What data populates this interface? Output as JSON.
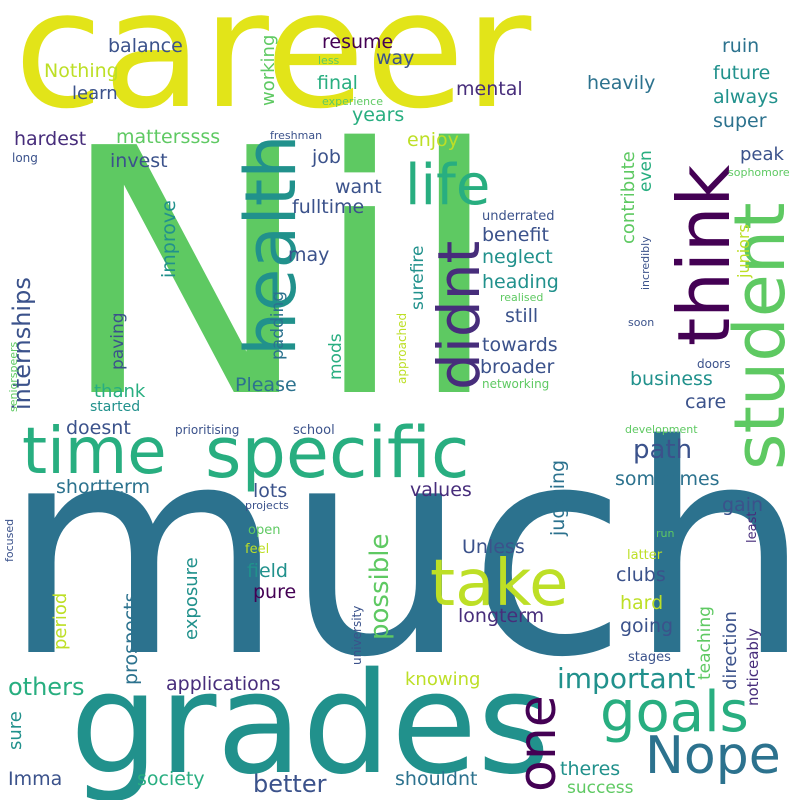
{
  "palette": {
    "yellow": "#e2e419",
    "green": "#5ec962",
    "lightgreen": "#7ad151",
    "teal": "#21918c",
    "blue": "#2c728e",
    "navy": "#3b528b",
    "purple": "#440154",
    "indigo": "#472d7b",
    "sea": "#28ae80",
    "lime": "#bddf26"
  },
  "words": [
    "career",
    "Nil",
    "much",
    "grades",
    "time",
    "specific",
    "health",
    "think",
    "student",
    "didnt",
    "life",
    "take",
    "goals",
    "Nope",
    "one",
    "important",
    "path",
    "possible",
    "internships",
    "resume",
    "balance",
    "Nothing",
    "learn",
    "working",
    "final",
    "way",
    "ruin",
    "future",
    "mental",
    "heavily",
    "always",
    "years",
    "super",
    "hardest",
    "matterssss",
    "enjoy",
    "invest",
    "job",
    "peak",
    "want",
    "fulltime",
    "contribute",
    "even",
    "improve",
    "benefit",
    "neglect",
    "heading",
    "may",
    "surefire",
    "juniors",
    "still",
    "towards",
    "broader",
    "padding",
    "paving",
    "mods",
    "Please",
    "thank",
    "business",
    "care",
    "doesnt",
    "started",
    "values",
    "shortterm",
    "lots",
    "sometimes",
    "gain",
    "Unless",
    "juggling",
    "field",
    "pure",
    "clubs",
    "exposure",
    "prospects",
    "period",
    "longterm",
    "going",
    "hard",
    "direction",
    "teaching",
    "others",
    "applications",
    "knowing",
    "sure",
    "better",
    "society",
    "shouldnt",
    "theres",
    "success",
    "Imma",
    "noticeably",
    "less",
    "experience",
    "freshman",
    "long",
    "sophomore",
    "underrated",
    "incredibly",
    "realised",
    "soon",
    "approached",
    "networking",
    "seniorspeers",
    "prioritising",
    "school",
    "development",
    "projects",
    "open",
    "feel",
    "run",
    "latter",
    "least",
    "focused",
    "university",
    "stages",
    "doors"
  ]
}
